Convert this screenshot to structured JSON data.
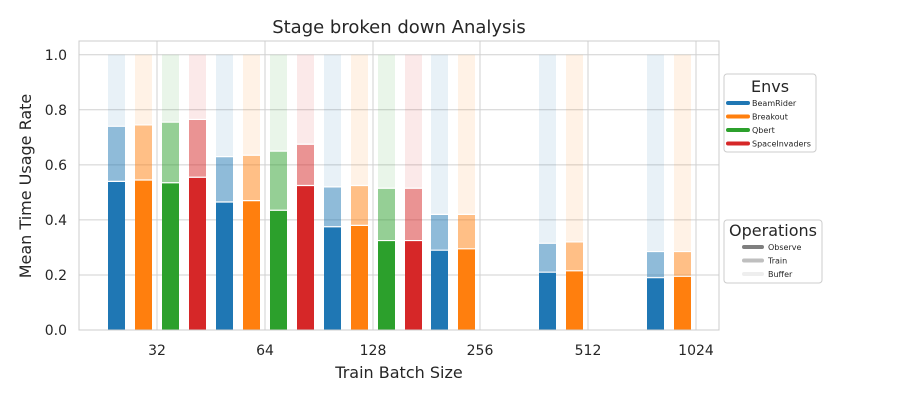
{
  "chart_data": {
    "type": "bar",
    "title": "Stage broken down Analysis",
    "xlabel": "Train Batch Size",
    "ylabel": "Mean Time Usage Rate",
    "ylim": [
      0,
      1.05
    ],
    "yticks": [
      "0.0",
      "0.2",
      "0.4",
      "0.6",
      "0.8",
      "1.0"
    ],
    "categories": [
      "32",
      "64",
      "128",
      "256",
      "512",
      "1024"
    ],
    "grid": true,
    "stacked": true,
    "colors": {
      "BeamRider": "#1f77b4",
      "Breakout": "#ff7f0e",
      "Qbert": "#2ca02c",
      "SpaceInvaders": "#d62728"
    },
    "series": [
      {
        "name": "BeamRider",
        "observe": [
          0.54,
          0.465,
          0.375,
          0.29,
          0.21,
          0.19
        ],
        "train_cumulative": [
          0.74,
          0.63,
          0.52,
          0.42,
          0.315,
          0.285
        ],
        "total": [
          1.0,
          1.0,
          1.0,
          1.0,
          1.0,
          1.0
        ]
      },
      {
        "name": "Breakout",
        "observe": [
          0.545,
          0.47,
          0.38,
          0.295,
          0.215,
          0.195
        ],
        "train_cumulative": [
          0.745,
          0.635,
          0.525,
          0.42,
          0.32,
          0.285
        ],
        "total": [
          1.0,
          1.0,
          1.0,
          1.0,
          1.0,
          1.0
        ]
      },
      {
        "name": "Qbert",
        "observe": [
          0.535,
          0.435,
          0.325,
          null,
          null,
          null
        ],
        "train_cumulative": [
          0.755,
          0.65,
          0.515,
          null,
          null,
          null
        ],
        "total": [
          1.0,
          1.0,
          1.0,
          null,
          null,
          null
        ]
      },
      {
        "name": "SpaceInvaders",
        "observe": [
          0.555,
          0.525,
          0.325,
          null,
          null,
          null
        ],
        "train_cumulative": [
          0.765,
          0.675,
          0.515,
          null,
          null,
          null
        ],
        "total": [
          1.0,
          1.0,
          1.0,
          null,
          null,
          null
        ]
      }
    ],
    "legend_envs": {
      "title": "Envs",
      "placement": "right",
      "items": [
        "BeamRider",
        "Breakout",
        "Qbert",
        "SpaceInvaders"
      ]
    },
    "legend_operations": {
      "title": "Operations",
      "placement": "right",
      "items": [
        {
          "label": "Observe",
          "color": "#7f7f7f"
        },
        {
          "label": "Train",
          "color": "#bfbfbf"
        },
        {
          "label": "Buffer",
          "color": "#eeeeee"
        }
      ]
    }
  }
}
